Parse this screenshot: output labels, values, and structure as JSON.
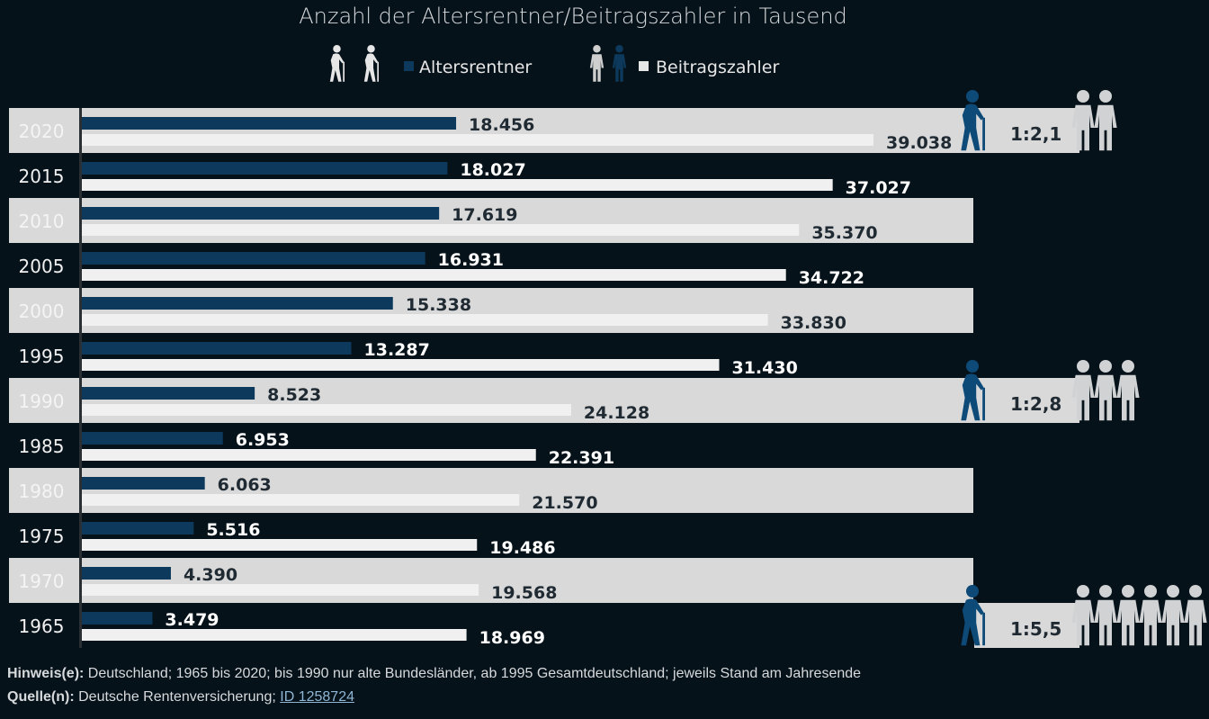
{
  "chart_data": {
    "type": "bar",
    "orientation": "horizontal",
    "title": "Anzahl der Altersrentner/Beitragszahler in Tausend",
    "categories": [
      "2020",
      "2015",
      "2010",
      "2005",
      "2000",
      "1995",
      "1990",
      "1985",
      "1980",
      "1975",
      "1970",
      "1965"
    ],
    "series": [
      {
        "name": "Altersrentner",
        "color": "#0d3a5c",
        "values": [
          18456,
          18027,
          17619,
          16931,
          15338,
          13287,
          8523,
          6953,
          6063,
          5516,
          4390,
          3479
        ],
        "labels": [
          "18.456",
          "18.027",
          "17.619",
          "16.931",
          "15.338",
          "13.287",
          "8.523",
          "6.953",
          "6.063",
          "5.516",
          "4.390",
          "3.479"
        ]
      },
      {
        "name": "Beitragszahler",
        "color": "#f0f0f0",
        "values": [
          39038,
          37027,
          35370,
          34722,
          33830,
          31430,
          24128,
          22391,
          21570,
          19486,
          19568,
          18969
        ],
        "labels": [
          "39.038",
          "37.027",
          "35.370",
          "34.722",
          "33.830",
          "31.430",
          "24.128",
          "22.391",
          "21.570",
          "19.486",
          "19.568",
          "18.969"
        ]
      }
    ],
    "ratios": [
      {
        "year": "2020",
        "label": "1:2,1",
        "figures": 2
      },
      {
        "year": "1990",
        "label": "1:2,8",
        "figures": 3
      },
      {
        "year": "1965",
        "label": "1:5,5",
        "figures": 6
      }
    ],
    "xlim": [
      0,
      40000
    ],
    "grid": false,
    "legend": "top-center",
    "band_color": "#d9d9d9",
    "background": "#06121a"
  },
  "notes": {
    "hint_label": "Hinweis(e):",
    "hint_text": " Deutschland; 1965 bis 2020; bis 1990 nur alte Bundesländer, ab 1995 Gesamtdeutschland; jeweils Stand am Jahresende",
    "source_label": "Quelle(n):",
    "source_text": " Deutsche Rentenversicherung; ",
    "source_link": "ID 1258724"
  }
}
